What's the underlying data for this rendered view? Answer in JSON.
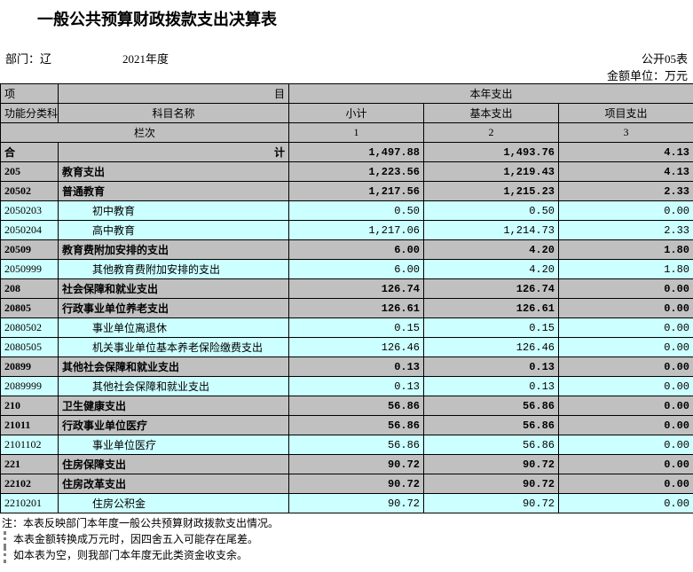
{
  "title": "一般公共预算财政拨款支出决算表",
  "form_no": "公开05表",
  "dept_label": "部门：辽",
  "year": "2021年度",
  "unit": "金额单位：万元",
  "colors": {
    "header_bg": "#c0c0c0",
    "leaf_bg": "#ccffff",
    "border": "#000000",
    "page_bg": "#ffffff"
  },
  "header": {
    "row1_left": "项",
    "row1_left2": "目",
    "row1_right": "本年支出",
    "code": "功能分类科目编码",
    "name": "科目名称",
    "subtotal": "小计",
    "basic": "基本支出",
    "project": "项目支出",
    "lane": "栏次",
    "lanes": [
      "1",
      "2",
      "3"
    ],
    "total_row": "合",
    "total_row2": "计"
  },
  "totals": {
    "subtotal": "1,497.88",
    "basic": "1,493.76",
    "project": "4.13"
  },
  "rows": [
    {
      "code": "205",
      "name": "教育支出",
      "v": [
        "1,223.56",
        "1,219.43",
        "4.13"
      ],
      "lvl": 0
    },
    {
      "code": "20502",
      "name": "普通教育",
      "v": [
        "1,217.56",
        "1,215.23",
        "2.33"
      ],
      "lvl": 0
    },
    {
      "code": "2050203",
      "name": "初中教育",
      "v": [
        "0.50",
        "0.50",
        "0.00"
      ],
      "lvl": 2
    },
    {
      "code": "2050204",
      "name": "高中教育",
      "v": [
        "1,217.06",
        "1,214.73",
        "2.33"
      ],
      "lvl": 2
    },
    {
      "code": "20509",
      "name": "教育费附加安排的支出",
      "v": [
        "6.00",
        "4.20",
        "1.80"
      ],
      "lvl": 0
    },
    {
      "code": "2050999",
      "name": "其他教育费附加安排的支出",
      "v": [
        "6.00",
        "4.20",
        "1.80"
      ],
      "lvl": 2
    },
    {
      "code": "208",
      "name": "社会保障和就业支出",
      "v": [
        "126.74",
        "126.74",
        "0.00"
      ],
      "lvl": 0
    },
    {
      "code": "20805",
      "name": "行政事业单位养老支出",
      "v": [
        "126.61",
        "126.61",
        "0.00"
      ],
      "lvl": 0
    },
    {
      "code": "2080502",
      "name": "事业单位离退休",
      "v": [
        "0.15",
        "0.15",
        "0.00"
      ],
      "lvl": 2
    },
    {
      "code": "2080505",
      "name": "机关事业单位基本养老保险缴费支出",
      "v": [
        "126.46",
        "126.46",
        "0.00"
      ],
      "lvl": 2
    },
    {
      "code": "20899",
      "name": "其他社会保障和就业支出",
      "v": [
        "0.13",
        "0.13",
        "0.00"
      ],
      "lvl": 0
    },
    {
      "code": "2089999",
      "name": "其他社会保障和就业支出",
      "v": [
        "0.13",
        "0.13",
        "0.00"
      ],
      "lvl": 2
    },
    {
      "code": "210",
      "name": "卫生健康支出",
      "v": [
        "56.86",
        "56.86",
        "0.00"
      ],
      "lvl": 0
    },
    {
      "code": "21011",
      "name": "行政事业单位医疗",
      "v": [
        "56.86",
        "56.86",
        "0.00"
      ],
      "lvl": 0
    },
    {
      "code": "2101102",
      "name": "事业单位医疗",
      "v": [
        "56.86",
        "56.86",
        "0.00"
      ],
      "lvl": 2
    },
    {
      "code": "221",
      "name": "住房保障支出",
      "v": [
        "90.72",
        "90.72",
        "0.00"
      ],
      "lvl": 0
    },
    {
      "code": "22102",
      "name": "住房改革支出",
      "v": [
        "90.72",
        "90.72",
        "0.00"
      ],
      "lvl": 0
    },
    {
      "code": "2210201",
      "name": "住房公积金",
      "v": [
        "90.72",
        "90.72",
        "0.00"
      ],
      "lvl": 2
    }
  ],
  "notes": [
    "注：本表反映部门本年度一般公共预算财政拨款支出情况。",
    "本表金额转换成万元时，因四舍五入可能存在尾差。",
    "如本表为空，则我部门本年度无此类资金收支余。"
  ]
}
